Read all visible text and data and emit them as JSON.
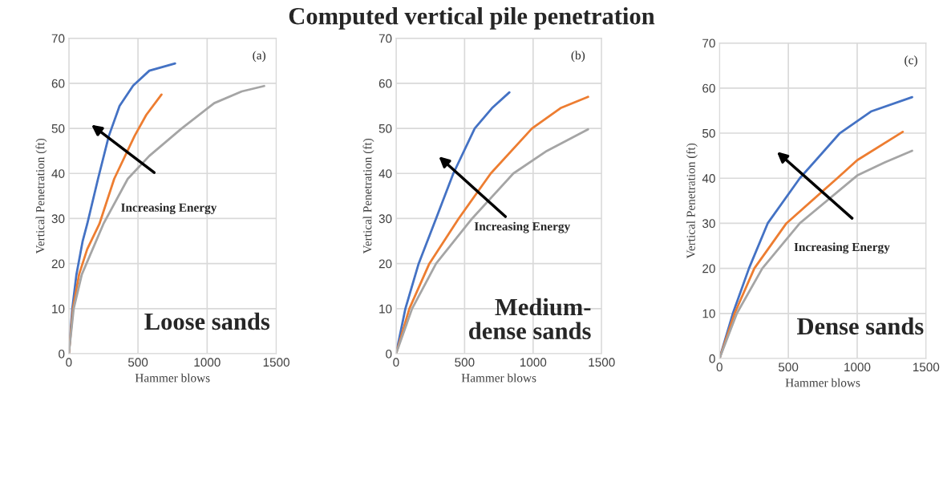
{
  "chart_data": [
    {
      "type": "line",
      "xlabel": "Hammer blows",
      "ylabel": "Vertical Penetration (ft)",
      "annotations": [
        "(a)",
        "Increasing Energy",
        "Loose sands"
      ],
      "xlim": [
        0,
        1500
      ],
      "xticks": [
        0,
        500,
        1000,
        1500
      ],
      "ylim": [
        0,
        70
      ],
      "yticks": [
        0,
        10,
        20,
        30,
        40,
        50,
        60,
        70
      ],
      "grid": true,
      "line_style": "solid",
      "series": [
        {
          "color": "#4472c4",
          "x": [
            0,
            25,
            55,
            100,
            133,
            211,
            289,
            367,
            465,
            582,
            768
          ],
          "values": [
            0,
            10,
            17.6,
            25,
            28.8,
            38.8,
            48.3,
            55,
            59.5,
            62.8,
            64.4
          ]
        },
        {
          "color": "#ed7d31",
          "x": [
            0,
            30,
            74,
            133,
            221,
            328,
            475,
            560,
            670
          ],
          "values": [
            0,
            10,
            17.6,
            23.2,
            28.8,
            38.8,
            48.3,
            53,
            57.5
          ]
        },
        {
          "color": "#a5a5a5",
          "x": [
            0,
            35,
            94,
            250,
            426,
            582,
            816,
            1051,
            1250,
            1412
          ],
          "values": [
            0,
            10,
            17.6,
            28.8,
            38.8,
            43.9,
            50,
            55.6,
            58.2,
            59.4
          ]
        }
      ]
    },
    {
      "type": "line",
      "title": "Computed vertical pile penetration",
      "xlabel": "Hammer blows",
      "ylabel": "Vertical Penetration (ft)",
      "annotations": [
        "(b)",
        "Increasing Energy",
        "Medium-\ndense sands"
      ],
      "xlim": [
        0,
        1500
      ],
      "xticks": [
        0,
        500,
        1000,
        1500
      ],
      "ylim": [
        0,
        70
      ],
      "yticks": [
        0,
        10,
        20,
        30,
        40,
        50,
        60,
        70
      ],
      "grid": true,
      "line_style": "solid",
      "series": [
        {
          "color": "#4472c4",
          "x": [
            0,
            68,
            165,
            292,
            418,
            574,
            700,
            827
          ],
          "values": [
            0,
            10,
            20,
            30,
            40,
            50,
            54.5,
            58
          ]
        },
        {
          "color": "#ed7d31",
          "x": [
            0,
            97,
            243,
            457,
            691,
            992,
            1200,
            1401
          ],
          "values": [
            0,
            10,
            20,
            30,
            40,
            50,
            54.5,
            57
          ]
        },
        {
          "color": "#a5a5a5",
          "x": [
            0,
            117,
            292,
            555,
            856,
            1100,
            1401
          ],
          "values": [
            0,
            10,
            20,
            30,
            40,
            45,
            49.8
          ]
        }
      ]
    },
    {
      "type": "line",
      "xlabel": "Hammer blows",
      "ylabel": "Vertical Penetration (ft)",
      "annotations": [
        "(c)",
        "Increasing Energy",
        "Dense sands"
      ],
      "xlim": [
        0,
        1500
      ],
      "xticks": [
        0,
        500,
        1000,
        1500
      ],
      "ylim": [
        0,
        70
      ],
      "yticks": [
        0,
        10,
        20,
        30,
        40,
        50,
        60,
        70
      ],
      "grid": true,
      "line_style": "solid",
      "series": [
        {
          "color": "#4472c4",
          "x": [
            0,
            97,
            214,
            350,
            583,
            874,
            1100,
            1399
          ],
          "values": [
            0,
            10,
            20,
            30,
            40,
            50,
            54.8,
            58
          ]
        },
        {
          "color": "#ed7d31",
          "x": [
            0,
            110,
            253,
            486,
            855,
            1000,
            1331
          ],
          "values": [
            0,
            10,
            20,
            30,
            40,
            44,
            50.3
          ]
        },
        {
          "color": "#a5a5a5",
          "x": [
            0,
            126,
            311,
            583,
            1000,
            1200,
            1399
          ],
          "values": [
            0,
            10,
            20,
            30,
            40.6,
            43.5,
            46.1
          ]
        }
      ]
    }
  ]
}
